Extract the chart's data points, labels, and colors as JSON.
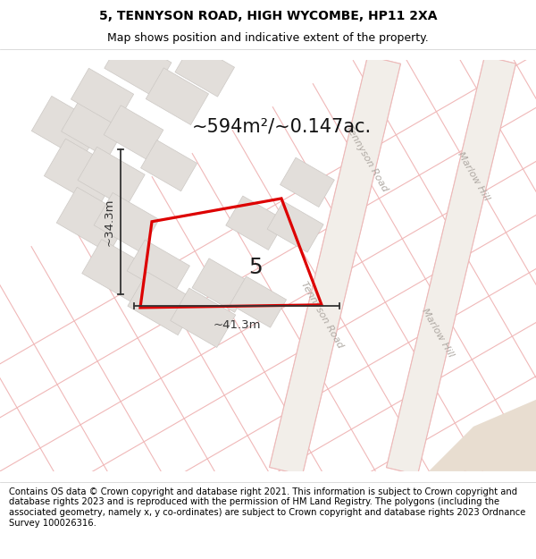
{
  "title": "5, TENNYSON ROAD, HIGH WYCOMBE, HP11 2XA",
  "subtitle": "Map shows position and indicative extent of the property.",
  "area_text": "~594m²/~0.147ac.",
  "label_width": "~41.3m",
  "label_height": "~34.3m",
  "property_number": "5",
  "footer": "Contains OS data © Crown copyright and database right 2021. This information is subject to Crown copyright and database rights 2023 and is reproduced with the permission of HM Land Registry. The polygons (including the associated geometry, namely x, y co-ordinates) are subject to Crown copyright and database rights 2023 Ordnance Survey 100026316.",
  "map_bg": "#f7f5f2",
  "block_color": "#e2deda",
  "block_edge_color": "#ccc8c4",
  "road_band_color": "#f0ece8",
  "road_label_color": "#b0aaa4",
  "red_line_color": "#dd0000",
  "pink_line_color": "#f0b8b8",
  "dim_line_color": "#333333",
  "title_fontsize": 10,
  "subtitle_fontsize": 9,
  "footer_fontsize": 7.2,
  "area_fontsize": 15,
  "road_label_size": 8,
  "prop_label_size": 18,
  "dim_label_size": 9.5
}
